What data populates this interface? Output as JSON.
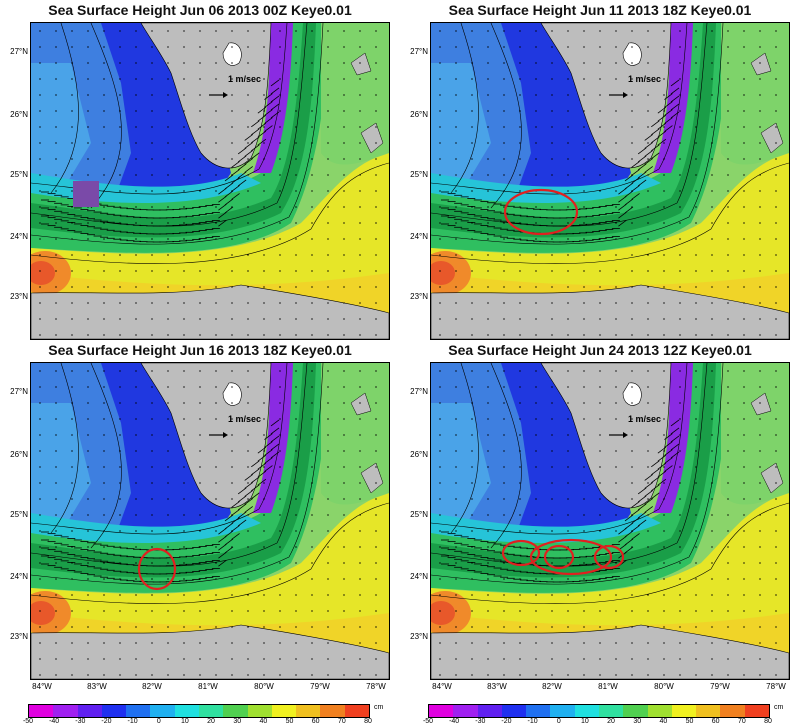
{
  "panels": [
    {
      "title": "Sea Surface Height Jun 06 2013 00Z  Keye0.01",
      "scale_label": "1 m/sec",
      "markers": [
        {
          "type": "square",
          "color": "#7a4aa8"
        }
      ]
    },
    {
      "title": "Sea Surface Height Jun 11 2013 18Z  Keye0.01",
      "scale_label": "1 m/sec",
      "markers": [
        {
          "type": "ellipse",
          "color": "#e02020"
        }
      ]
    },
    {
      "title": "Sea Surface Height Jun 16 2013 18Z  Keye0.01",
      "scale_label": "1 m/sec",
      "markers": [
        {
          "type": "ellipse",
          "color": "#e02020"
        }
      ]
    },
    {
      "title": "Sea Surface Height Jun 24 2013 12Z  Keye0.01",
      "scale_label": "1 m/sec",
      "markers": [
        {
          "type": "ellipse",
          "color": "#e02020"
        },
        {
          "type": "ellipse",
          "color": "#e02020"
        },
        {
          "type": "ellipse",
          "color": "#e02020"
        },
        {
          "type": "ellipse",
          "color": "#e02020"
        }
      ]
    }
  ],
  "lat_labels": [
    "27°N",
    "26°N",
    "25°N",
    "24°N",
    "23°N"
  ],
  "lon_labels": [
    "84°W",
    "83°W",
    "82°W",
    "81°W",
    "80°W",
    "79°W",
    "78°W"
  ],
  "colorbar": {
    "ticks": [
      "-50",
      "-40",
      "-30",
      "-20",
      "-10",
      "0",
      "10",
      "20",
      "30",
      "40",
      "50",
      "60",
      "70",
      "80"
    ],
    "unit": "cm",
    "colors": [
      "#e000e0",
      "#a020f0",
      "#6020f0",
      "#2030f0",
      "#2070f0",
      "#20b0f0",
      "#20e0e0",
      "#30e0a0",
      "#50d050",
      "#a0e030",
      "#f0f020",
      "#f0c020",
      "#f08020",
      "#f04020"
    ]
  },
  "legend_labels": {
    "land": "land",
    "arrows": "velocity vectors"
  }
}
